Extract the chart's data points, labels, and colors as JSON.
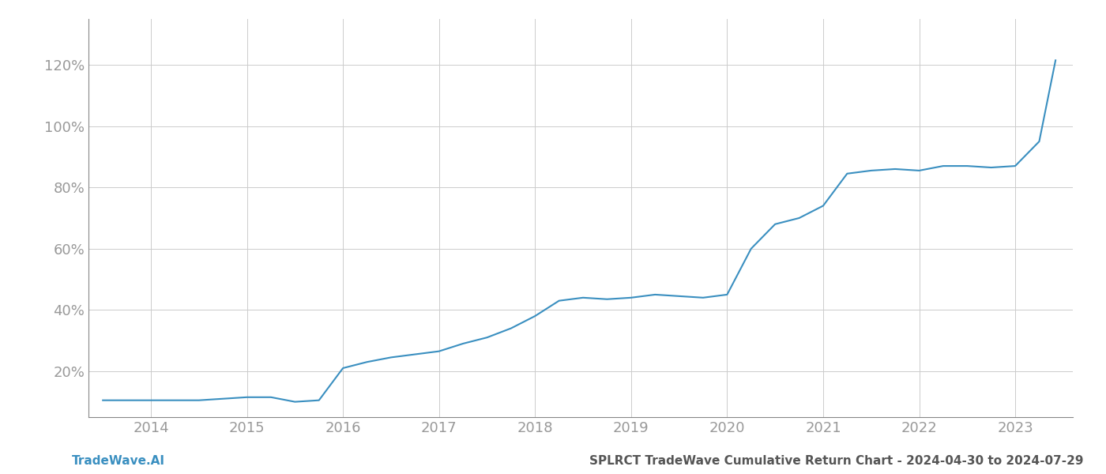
{
  "x_values": [
    2013.5,
    2013.75,
    2014.0,
    2014.25,
    2014.5,
    2014.75,
    2015.0,
    2015.25,
    2015.5,
    2015.75,
    2016.0,
    2016.25,
    2016.5,
    2016.75,
    2017.0,
    2017.25,
    2017.5,
    2017.75,
    2018.0,
    2018.25,
    2018.5,
    2018.75,
    2019.0,
    2019.25,
    2019.5,
    2019.75,
    2020.0,
    2020.25,
    2020.5,
    2020.75,
    2021.0,
    2021.25,
    2021.5,
    2021.75,
    2022.0,
    2022.25,
    2022.5,
    2022.75,
    2023.0,
    2023.25,
    2023.42
  ],
  "y_values": [
    10.5,
    10.5,
    10.5,
    10.5,
    10.5,
    11.0,
    11.5,
    11.5,
    10.0,
    10.5,
    21.0,
    23.0,
    24.5,
    25.5,
    26.5,
    29.0,
    31.0,
    34.0,
    38.0,
    43.0,
    44.0,
    43.5,
    44.0,
    45.0,
    44.5,
    44.0,
    45.0,
    60.0,
    68.0,
    70.0,
    74.0,
    84.5,
    85.5,
    86.0,
    85.5,
    87.0,
    87.0,
    86.5,
    87.0,
    95.0,
    121.5
  ],
  "line_color": "#3a8fc0",
  "line_width": 1.5,
  "background_color": "#ffffff",
  "grid_color": "#cccccc",
  "footer_left": "TradeWave.AI",
  "footer_right": "SPLRCT TradeWave Cumulative Return Chart - 2024-04-30 to 2024-07-29",
  "xlim": [
    2013.35,
    2023.6
  ],
  "ylim": [
    5,
    135
  ],
  "yticks": [
    20,
    40,
    60,
    80,
    100,
    120
  ],
  "ytick_labels": [
    "20%",
    "40%",
    "60%",
    "80%",
    "100%",
    "120%"
  ],
  "xtick_years": [
    2014,
    2015,
    2016,
    2017,
    2018,
    2019,
    2020,
    2021,
    2022,
    2023
  ],
  "tick_color": "#999999",
  "footer_left_color": "#3a8fc0",
  "footer_right_color": "#555555",
  "footer_fontsize": 11,
  "tick_fontsize": 13
}
